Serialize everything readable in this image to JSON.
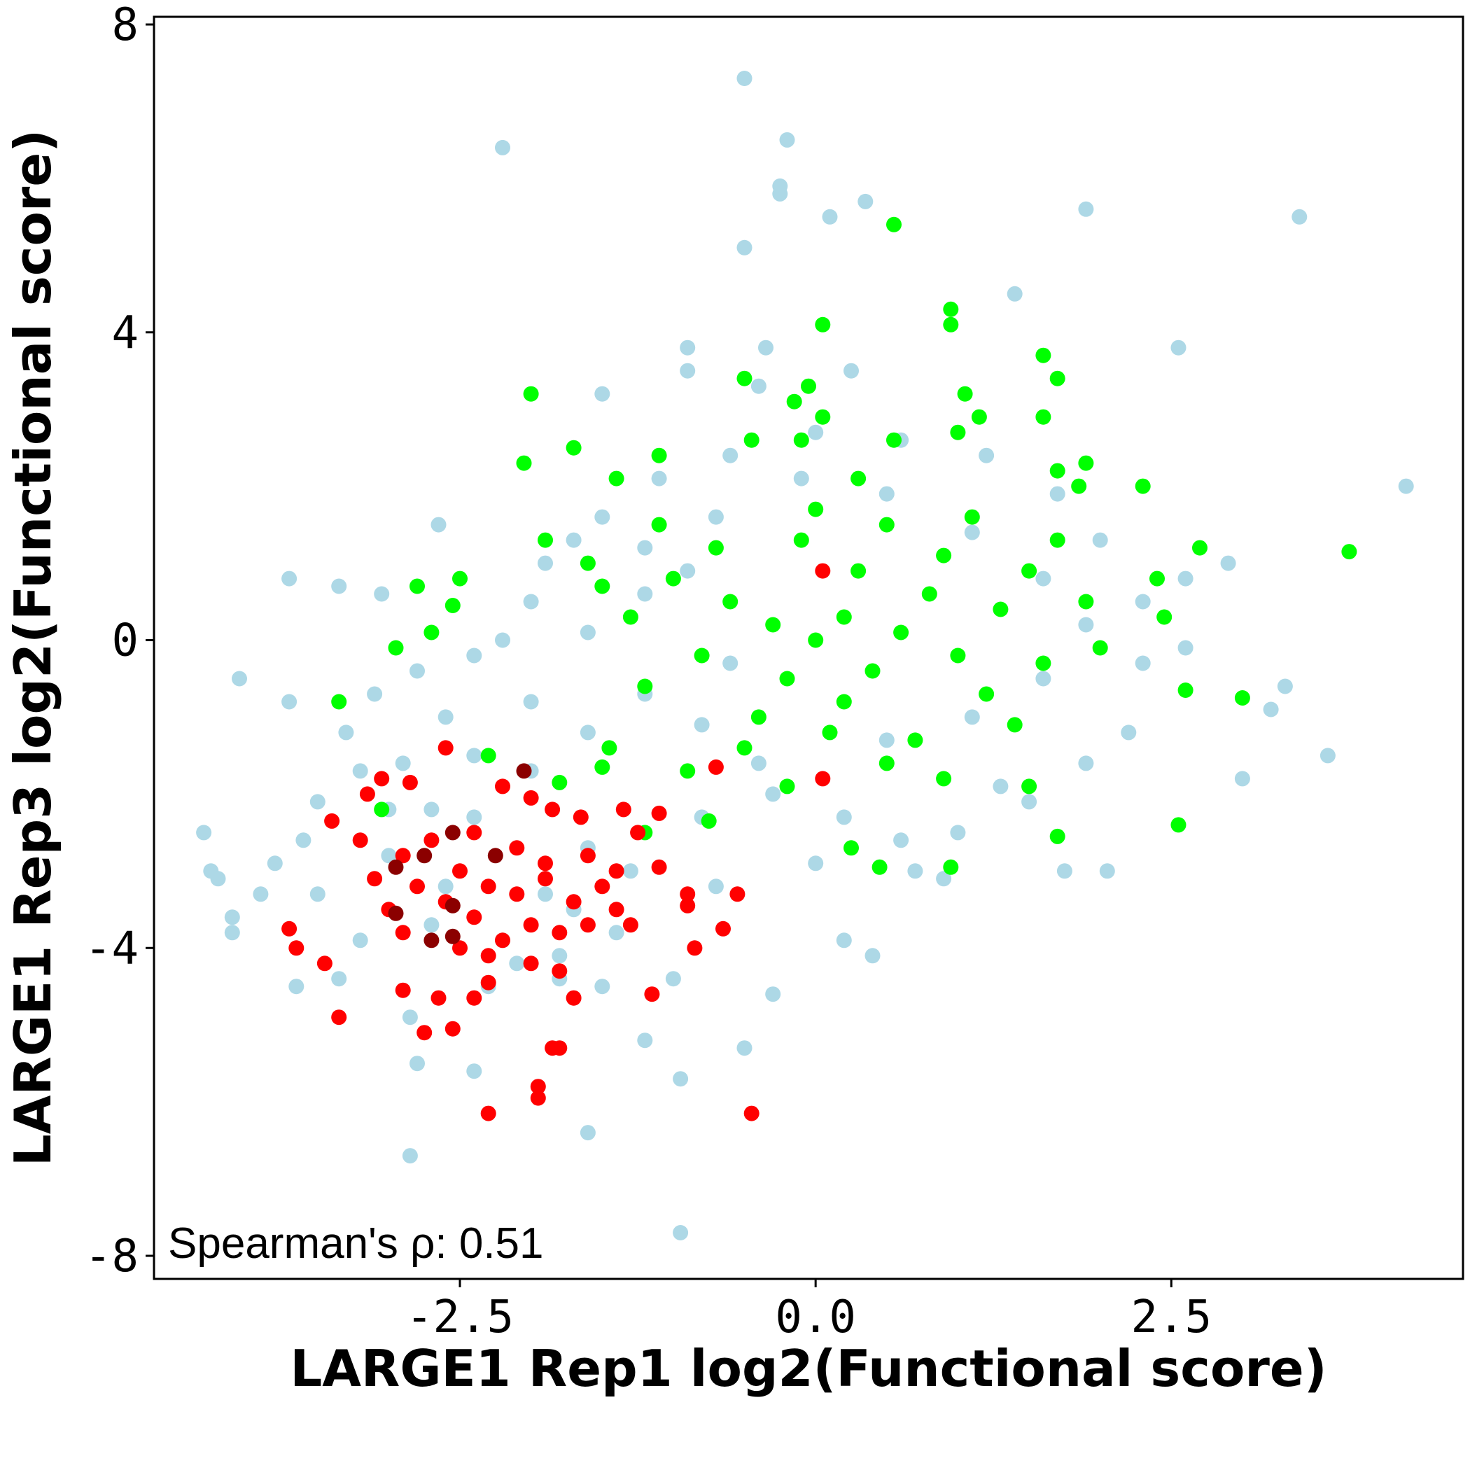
{
  "chart_data": {
    "type": "scatter",
    "xlabel": "LARGE1 Rep1 log2(Functional score)",
    "ylabel": "LARGE1 Rep3 log2(Functional score)",
    "xlim": [
      -4.65,
      4.55
    ],
    "ylim": [
      -8.3,
      8.1
    ],
    "x_ticks": [
      -2.5,
      0.0,
      2.5
    ],
    "x_tick_labels": [
      "-2.5",
      "0.0",
      "2.5"
    ],
    "y_ticks": [
      -8,
      -4,
      0,
      4,
      8
    ],
    "y_tick_labels": [
      "-8",
      "-4",
      "0",
      "4",
      "8"
    ],
    "grid": false,
    "annotation": "Spearman's ρ: 0.51",
    "series": [
      {
        "color": "#add8e6",
        "points": [
          [
            -0.5,
            7.3
          ],
          [
            -0.2,
            6.5
          ],
          [
            -2.2,
            6.4
          ],
          [
            -0.25,
            5.9
          ],
          [
            -0.25,
            5.8
          ],
          [
            0.35,
            5.7
          ],
          [
            0.1,
            5.5
          ],
          [
            1.9,
            5.6
          ],
          [
            3.4,
            5.5
          ],
          [
            -0.5,
            5.1
          ],
          [
            1.4,
            4.5
          ],
          [
            2.55,
            3.8
          ],
          [
            -0.9,
            3.8
          ],
          [
            -0.35,
            3.8
          ],
          [
            -0.9,
            3.5
          ],
          [
            0.25,
            3.5
          ],
          [
            -1.5,
            3.2
          ],
          [
            -0.4,
            3.3
          ],
          [
            4.15,
            2.0
          ],
          [
            -2.65,
            1.5
          ],
          [
            -3.7,
            0.8
          ],
          [
            -3.35,
            0.7
          ],
          [
            -3.05,
            0.6
          ],
          [
            -4.05,
            -0.5
          ],
          [
            -3.7,
            -0.8
          ],
          [
            -4.3,
            -2.5
          ],
          [
            -4.25,
            -3.0
          ],
          [
            -4.2,
            -3.1
          ],
          [
            -4.1,
            -3.6
          ],
          [
            -4.1,
            -3.8
          ],
          [
            -3.65,
            -4.5
          ],
          [
            -3.35,
            -4.4
          ],
          [
            -2.85,
            -4.9
          ],
          [
            -2.8,
            -5.5
          ],
          [
            -2.4,
            -5.6
          ],
          [
            -2.85,
            -6.7
          ],
          [
            -1.6,
            -6.4
          ],
          [
            -0.95,
            -7.7
          ],
          [
            -1.2,
            -5.2
          ],
          [
            -0.95,
            -5.7
          ],
          [
            -0.5,
            -5.3
          ],
          [
            -0.3,
            -4.6
          ],
          [
            0.4,
            -4.1
          ],
          [
            0.2,
            -3.9
          ],
          [
            3.6,
            -1.5
          ],
          [
            3.0,
            -1.8
          ],
          [
            3.3,
            -0.6
          ],
          [
            2.6,
            -0.1
          ],
          [
            2.3,
            -0.3
          ],
          [
            2.6,
            0.8
          ],
          [
            2.9,
            1.0
          ],
          [
            3.2,
            -0.9
          ],
          [
            2.05,
            -3.0
          ],
          [
            1.75,
            -3.0
          ],
          [
            1.3,
            -1.9
          ],
          [
            -1.4,
            -3.8
          ],
          [
            -1.0,
            -4.4
          ],
          [
            -1.8,
            -4.1
          ],
          [
            -1.5,
            -4.5
          ],
          [
            -2.1,
            -4.2
          ],
          [
            -1.9,
            -3.3
          ],
          [
            -0.7,
            -3.2
          ],
          [
            0.7,
            -3.0
          ],
          [
            0.9,
            -3.1
          ],
          [
            -0.6,
            -0.3
          ],
          [
            -0.9,
            0.9
          ],
          [
            -1.2,
            1.2
          ],
          [
            -1.7,
            1.3
          ],
          [
            -2.0,
            0.5
          ],
          [
            -2.4,
            -0.2
          ],
          [
            -2.8,
            -0.4
          ],
          [
            -3.1,
            -0.7
          ],
          [
            -3.3,
            -1.2
          ],
          [
            -3.2,
            -1.7
          ],
          [
            -3.0,
            -2.2
          ],
          [
            -3.5,
            -2.1
          ],
          [
            -3.6,
            -2.6
          ],
          [
            -3.8,
            -2.9
          ],
          [
            -3.9,
            -3.3
          ],
          [
            -3.5,
            -3.3
          ],
          [
            -3.2,
            -3.9
          ],
          [
            -2.7,
            -3.7
          ],
          [
            -2.3,
            -4.5
          ],
          [
            -1.7,
            -3.5
          ],
          [
            -1.3,
            -3.0
          ],
          [
            -1.6,
            -2.7
          ],
          [
            -0.8,
            -2.3
          ],
          [
            -0.3,
            -2.0
          ],
          [
            0.2,
            -2.3
          ],
          [
            0.6,
            -2.6
          ],
          [
            1.0,
            -2.5
          ],
          [
            1.5,
            -2.1
          ],
          [
            1.9,
            -1.6
          ],
          [
            2.2,
            -1.2
          ],
          [
            2.3,
            0.5
          ],
          [
            2.0,
            1.3
          ],
          [
            1.7,
            1.9
          ],
          [
            1.2,
            2.4
          ],
          [
            0.6,
            2.6
          ],
          [
            0.0,
            2.7
          ],
          [
            -0.6,
            2.4
          ],
          [
            -1.1,
            2.1
          ],
          [
            -1.5,
            1.6
          ],
          [
            -1.9,
            1.0
          ],
          [
            -2.2,
            0.0
          ],
          [
            -2.6,
            -1.0
          ],
          [
            -2.9,
            -1.6
          ],
          [
            -2.4,
            -2.3
          ],
          [
            -2.0,
            -1.7
          ],
          [
            -1.6,
            -1.2
          ],
          [
            -1.2,
            -0.7
          ],
          [
            -0.8,
            -1.1
          ],
          [
            -0.4,
            -1.6
          ],
          [
            0.0,
            -2.9
          ],
          [
            0.5,
            -1.3
          ],
          [
            1.1,
            -1.0
          ],
          [
            1.6,
            -0.5
          ],
          [
            1.9,
            0.2
          ],
          [
            1.6,
            0.8
          ],
          [
            1.1,
            1.4
          ],
          [
            0.5,
            1.9
          ],
          [
            -0.1,
            2.1
          ],
          [
            -0.7,
            1.6
          ],
          [
            -1.2,
            0.6
          ],
          [
            -1.6,
            0.1
          ],
          [
            -2.0,
            -0.8
          ],
          [
            -2.4,
            -1.5
          ],
          [
            -2.7,
            -2.2
          ],
          [
            -3.0,
            -2.8
          ],
          [
            -2.6,
            -3.2
          ],
          [
            -2.2,
            -3.9
          ],
          [
            -1.8,
            -4.4
          ]
        ]
      },
      {
        "color": "#00ff00",
        "points": [
          [
            0.55,
            5.4
          ],
          [
            0.95,
            4.3
          ],
          [
            0.95,
            4.1
          ],
          [
            0.05,
            4.1
          ],
          [
            -0.5,
            3.4
          ],
          [
            -2.0,
            3.2
          ],
          [
            1.6,
            3.7
          ],
          [
            1.7,
            3.4
          ],
          [
            1.05,
            3.2
          ],
          [
            -0.05,
            3.3
          ],
          [
            -0.15,
            3.1
          ],
          [
            1.15,
            2.9
          ],
          [
            1.6,
            2.9
          ],
          [
            0.05,
            2.9
          ],
          [
            1.0,
            2.7
          ],
          [
            -0.45,
            2.6
          ],
          [
            0.55,
            2.6
          ],
          [
            -0.1,
            2.6
          ],
          [
            -1.7,
            2.5
          ],
          [
            -1.1,
            2.4
          ],
          [
            -2.05,
            2.3
          ],
          [
            1.9,
            2.3
          ],
          [
            1.7,
            2.2
          ],
          [
            -1.4,
            2.1
          ],
          [
            1.85,
            2.0
          ],
          [
            2.3,
            2.0
          ],
          [
            -1.9,
            1.3
          ],
          [
            -1.6,
            1.0
          ],
          [
            -2.5,
            0.8
          ],
          [
            -2.8,
            0.7
          ],
          [
            -2.55,
            0.45
          ],
          [
            -2.7,
            0.1
          ],
          [
            -2.95,
            -0.1
          ],
          [
            -3.35,
            -0.8
          ],
          [
            -3.05,
            -2.2
          ],
          [
            3.75,
            1.15
          ],
          [
            2.7,
            1.2
          ],
          [
            2.4,
            0.8
          ],
          [
            2.45,
            0.3
          ],
          [
            2.6,
            -0.65
          ],
          [
            3.0,
            -0.75
          ],
          [
            2.55,
            -2.4
          ],
          [
            1.7,
            -2.55
          ],
          [
            1.5,
            -1.9
          ],
          [
            0.45,
            -2.95
          ],
          [
            0.95,
            -2.95
          ],
          [
            0.25,
            -2.7
          ],
          [
            -1.2,
            -2.5
          ],
          [
            -0.75,
            -2.35
          ],
          [
            -1.45,
            -1.4
          ],
          [
            -1.8,
            -1.85
          ],
          [
            -2.3,
            -1.5
          ],
          [
            -1.5,
            -1.65
          ],
          [
            0.0,
            0.0
          ],
          [
            0.2,
            0.3
          ],
          [
            -0.3,
            0.2
          ],
          [
            0.6,
            0.1
          ],
          [
            0.4,
            -0.4
          ],
          [
            -0.2,
            -0.5
          ],
          [
            0.8,
            0.6
          ],
          [
            1.0,
            -0.2
          ],
          [
            -0.6,
            0.5
          ],
          [
            -0.8,
            -0.2
          ],
          [
            0.3,
            0.9
          ],
          [
            0.9,
            1.1
          ],
          [
            1.3,
            0.4
          ],
          [
            1.2,
            -0.7
          ],
          [
            -0.4,
            -1.0
          ],
          [
            0.1,
            -1.2
          ],
          [
            0.7,
            -1.3
          ],
          [
            -1.0,
            0.8
          ],
          [
            -1.2,
            -0.6
          ],
          [
            1.5,
            0.9
          ],
          [
            1.6,
            -0.3
          ],
          [
            0.5,
            1.5
          ],
          [
            -0.1,
            1.3
          ],
          [
            -0.7,
            1.2
          ],
          [
            0.2,
            -0.8
          ],
          [
            1.1,
            1.6
          ],
          [
            -1.3,
            0.3
          ],
          [
            0.5,
            -1.6
          ],
          [
            1.4,
            -1.1
          ],
          [
            -0.5,
            -1.4
          ],
          [
            0.0,
            1.7
          ],
          [
            1.9,
            0.5
          ],
          [
            2.0,
            -0.1
          ],
          [
            -1.5,
            0.7
          ],
          [
            0.9,
            -1.8
          ],
          [
            -0.2,
            -1.9
          ],
          [
            1.7,
            1.3
          ],
          [
            -1.1,
            1.5
          ],
          [
            0.3,
            2.1
          ],
          [
            -0.9,
            -1.7
          ]
        ]
      },
      {
        "color": "#ff0000",
        "points": [
          [
            0.05,
            0.9
          ],
          [
            0.05,
            -1.8
          ],
          [
            -0.7,
            -1.65
          ],
          [
            -0.45,
            -6.15
          ],
          [
            -2.3,
            -6.15
          ],
          [
            -1.95,
            -5.95
          ],
          [
            -1.95,
            -5.8
          ],
          [
            -1.8,
            -5.3
          ],
          [
            -1.85,
            -5.3
          ],
          [
            -2.75,
            -5.1
          ],
          [
            -2.55,
            -5.05
          ],
          [
            -3.35,
            -4.9
          ],
          [
            -2.9,
            -4.55
          ],
          [
            -2.65,
            -4.65
          ],
          [
            -2.4,
            -4.65
          ],
          [
            -2.3,
            -4.45
          ],
          [
            -1.7,
            -4.65
          ],
          [
            -1.15,
            -4.6
          ],
          [
            -3.45,
            -4.2
          ],
          [
            -3.65,
            -4.0
          ],
          [
            -3.7,
            -3.75
          ],
          [
            -0.85,
            -4.0
          ],
          [
            -0.65,
            -3.75
          ],
          [
            -0.55,
            -3.3
          ],
          [
            -0.9,
            -3.3
          ],
          [
            -1.1,
            -2.95
          ],
          [
            -1.25,
            -2.5
          ],
          [
            -1.35,
            -2.2
          ],
          [
            -1.1,
            -2.25
          ],
          [
            -0.9,
            -3.45
          ],
          [
            -3.4,
            -2.35
          ],
          [
            -3.2,
            -2.6
          ],
          [
            -3.15,
            -2.0
          ],
          [
            -3.05,
            -1.8
          ],
          [
            -2.85,
            -1.85
          ],
          [
            -2.6,
            -1.4
          ],
          [
            -2.2,
            -1.9
          ],
          [
            -2.0,
            -2.05
          ],
          [
            -1.85,
            -2.2
          ],
          [
            -1.65,
            -2.3
          ],
          [
            -2.5,
            -3.0
          ],
          [
            -2.3,
            -3.2
          ],
          [
            -2.1,
            -3.3
          ],
          [
            -1.9,
            -3.1
          ],
          [
            -1.7,
            -3.4
          ],
          [
            -1.5,
            -3.2
          ],
          [
            -2.4,
            -3.6
          ],
          [
            -2.2,
            -3.9
          ],
          [
            -2.0,
            -3.7
          ],
          [
            -1.8,
            -3.8
          ],
          [
            -2.6,
            -3.4
          ],
          [
            -2.8,
            -3.2
          ],
          [
            -2.9,
            -2.8
          ],
          [
            -2.7,
            -2.6
          ],
          [
            -2.4,
            -2.5
          ],
          [
            -2.1,
            -2.7
          ],
          [
            -1.9,
            -2.9
          ],
          [
            -1.6,
            -2.8
          ],
          [
            -1.4,
            -3.0
          ],
          [
            -2.3,
            -4.1
          ],
          [
            -2.5,
            -4.0
          ],
          [
            -2.9,
            -3.8
          ],
          [
            -3.0,
            -3.5
          ],
          [
            -3.1,
            -3.1
          ],
          [
            -1.6,
            -3.7
          ],
          [
            -1.4,
            -3.5
          ],
          [
            -1.3,
            -3.7
          ],
          [
            -2.0,
            -4.2
          ],
          [
            -1.8,
            -4.3
          ]
        ]
      },
      {
        "color": "#8b0000",
        "points": [
          [
            -2.05,
            -1.7
          ],
          [
            -2.55,
            -2.5
          ],
          [
            -2.75,
            -2.8
          ],
          [
            -2.25,
            -2.8
          ],
          [
            -2.95,
            -2.95
          ],
          [
            -2.55,
            -3.45
          ],
          [
            -2.95,
            -3.55
          ],
          [
            -2.55,
            -3.85
          ],
          [
            -2.7,
            -3.9
          ]
        ]
      }
    ]
  }
}
